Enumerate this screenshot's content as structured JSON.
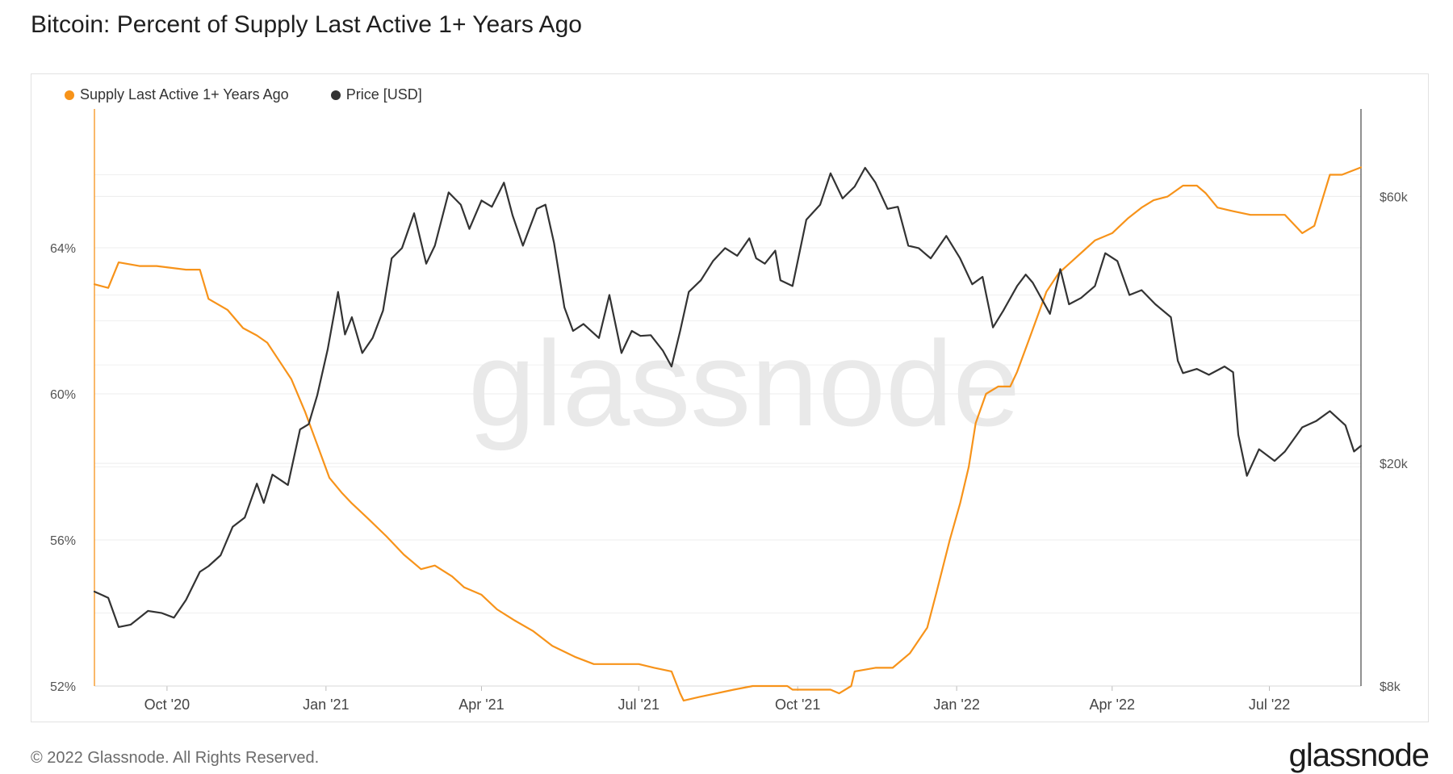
{
  "title": "Bitcoin: Percent of Supply Last Active 1+ Years Ago",
  "legend": [
    {
      "label": "Supply Last Active 1+ Years Ago",
      "color": "#f7931a"
    },
    {
      "label": "Price [USD]",
      "color": "#333333"
    }
  ],
  "watermark": "glassnode",
  "footer": {
    "copyright": "© 2022 Glassnode. All Rights Reserved.",
    "logo": "glassnode"
  },
  "chart_data": {
    "type": "line",
    "title": "Bitcoin: Percent of Supply Last Active 1+ Years Ago",
    "x_ticks": [
      "Oct '20",
      "Jan '21",
      "Apr '21",
      "Jul '21",
      "Oct '21",
      "Jan '22",
      "Apr '22",
      "Jul '22"
    ],
    "x_tick_dates": [
      "2020-10-01",
      "2021-01-01",
      "2021-04-01",
      "2021-07-01",
      "2021-10-01",
      "2022-01-01",
      "2022-04-01",
      "2022-07-01"
    ],
    "x_range": [
      "2020-08-20",
      "2022-08-23"
    ],
    "y_left": {
      "ticks": [
        "52%",
        "56%",
        "60%",
        "64%"
      ],
      "range": [
        52,
        67.8
      ],
      "unit": "%"
    },
    "y_right": {
      "ticks": [
        "$8k",
        "$20k",
        "$60k"
      ],
      "scale": "log",
      "range": [
        8000,
        86000
      ]
    },
    "grid": true,
    "legend_position": "top-left",
    "series": [
      {
        "name": "Supply Last Active 1+ Years Ago",
        "axis": "left",
        "color": "#f7931a",
        "x": [
          "2020-08-20",
          "2020-08-28",
          "2020-09-03",
          "2020-09-15",
          "2020-09-25",
          "2020-10-12",
          "2020-10-20",
          "2020-10-25",
          "2020-11-05",
          "2020-11-14",
          "2020-11-22",
          "2020-11-28",
          "2020-12-05",
          "2020-12-12",
          "2020-12-20",
          "2020-12-27",
          "2021-01-03",
          "2021-01-10",
          "2021-01-16",
          "2021-01-25",
          "2021-02-05",
          "2021-02-15",
          "2021-02-25",
          "2021-03-05",
          "2021-03-15",
          "2021-03-22",
          "2021-04-01",
          "2021-04-10",
          "2021-04-20",
          "2021-05-01",
          "2021-05-12",
          "2021-05-25",
          "2021-06-05",
          "2021-06-15",
          "2021-06-25",
          "2021-07-01",
          "2021-07-10",
          "2021-07-20",
          "2021-07-25",
          "2021-07-27",
          "2021-08-05",
          "2021-08-15",
          "2021-08-25",
          "2021-09-05",
          "2021-09-15",
          "2021-09-25",
          "2021-09-28",
          "2021-10-10",
          "2021-10-20",
          "2021-10-25",
          "2021-11-01",
          "2021-11-03",
          "2021-11-15",
          "2021-11-25",
          "2021-12-05",
          "2021-12-15",
          "2021-12-20",
          "2021-12-28",
          "2022-01-03",
          "2022-01-08",
          "2022-01-12",
          "2022-01-18",
          "2022-01-25",
          "2022-02-01",
          "2022-02-05",
          "2022-02-12",
          "2022-02-22",
          "2022-03-01",
          "2022-03-08",
          "2022-03-15",
          "2022-03-22",
          "2022-04-01",
          "2022-04-10",
          "2022-04-18",
          "2022-04-25",
          "2022-05-03",
          "2022-05-12",
          "2022-05-20",
          "2022-05-25",
          "2022-06-01",
          "2022-06-10",
          "2022-06-20",
          "2022-07-01",
          "2022-07-10",
          "2022-07-20",
          "2022-07-27",
          "2022-08-05",
          "2022-08-12",
          "2022-08-23"
        ],
        "values": [
          63.0,
          62.9,
          63.6,
          63.5,
          63.5,
          63.4,
          63.4,
          62.6,
          62.3,
          61.8,
          61.6,
          61.4,
          60.9,
          60.4,
          59.5,
          58.6,
          57.7,
          57.3,
          57.0,
          56.6,
          56.1,
          55.6,
          55.2,
          55.3,
          55.0,
          54.7,
          54.5,
          54.1,
          53.8,
          53.5,
          53.1,
          52.8,
          52.6,
          52.6,
          52.6,
          52.6,
          52.5,
          52.4,
          51.8,
          51.6,
          51.7,
          51.8,
          51.9,
          52.0,
          52.0,
          52.0,
          51.9,
          51.9,
          51.9,
          51.8,
          52.0,
          52.4,
          52.5,
          52.5,
          52.9,
          53.6,
          54.5,
          56.0,
          57.0,
          58.0,
          59.2,
          60.0,
          60.2,
          60.2,
          60.6,
          61.5,
          62.8,
          63.3,
          63.6,
          63.9,
          64.2,
          64.4,
          64.8,
          65.1,
          65.3,
          65.4,
          65.7,
          65.7,
          65.5,
          65.1,
          65.0,
          64.9,
          64.9,
          64.9,
          64.4,
          64.6,
          66.0,
          66.0,
          66.2
        ]
      },
      {
        "name": "Price [USD]",
        "axis": "right",
        "color": "#333333",
        "x": [
          "2020-08-20",
          "2020-08-28",
          "2020-09-03",
          "2020-09-10",
          "2020-09-20",
          "2020-09-28",
          "2020-10-05",
          "2020-10-12",
          "2020-10-20",
          "2020-10-25",
          "2020-11-01",
          "2020-11-08",
          "2020-11-15",
          "2020-11-22",
          "2020-11-26",
          "2020-12-01",
          "2020-12-10",
          "2020-12-17",
          "2020-12-22",
          "2020-12-27",
          "2021-01-02",
          "2021-01-08",
          "2021-01-12",
          "2021-01-16",
          "2021-01-22",
          "2021-01-28",
          "2021-02-03",
          "2021-02-08",
          "2021-02-14",
          "2021-02-21",
          "2021-02-28",
          "2021-03-05",
          "2021-03-13",
          "2021-03-20",
          "2021-03-25",
          "2021-04-01",
          "2021-04-07",
          "2021-04-14",
          "2021-04-19",
          "2021-04-25",
          "2021-05-03",
          "2021-05-08",
          "2021-05-13",
          "2021-05-19",
          "2021-05-24",
          "2021-05-30",
          "2021-06-08",
          "2021-06-14",
          "2021-06-21",
          "2021-06-27",
          "2021-07-02",
          "2021-07-08",
          "2021-07-15",
          "2021-07-20",
          "2021-07-25",
          "2021-07-30",
          "2021-08-06",
          "2021-08-13",
          "2021-08-20",
          "2021-08-27",
          "2021-09-03",
          "2021-09-07",
          "2021-09-12",
          "2021-09-18",
          "2021-09-21",
          "2021-09-28",
          "2021-10-06",
          "2021-10-14",
          "2021-10-20",
          "2021-10-27",
          "2021-11-03",
          "2021-11-09",
          "2021-11-15",
          "2021-11-22",
          "2021-11-28",
          "2021-12-04",
          "2021-12-10",
          "2021-12-17",
          "2021-12-26",
          "2022-01-03",
          "2022-01-10",
          "2022-01-16",
          "2022-01-22",
          "2022-01-28",
          "2022-02-05",
          "2022-02-10",
          "2022-02-14",
          "2022-02-24",
          "2022-03-02",
          "2022-03-07",
          "2022-03-14",
          "2022-03-22",
          "2022-03-28",
          "2022-04-04",
          "2022-04-11",
          "2022-04-18",
          "2022-04-26",
          "2022-05-05",
          "2022-05-09",
          "2022-05-12",
          "2022-05-20",
          "2022-05-27",
          "2022-06-05",
          "2022-06-10",
          "2022-06-13",
          "2022-06-18",
          "2022-06-25",
          "2022-07-04",
          "2022-07-10",
          "2022-07-20",
          "2022-07-28",
          "2022-08-05",
          "2022-08-14",
          "2022-08-19",
          "2022-08-23"
        ],
        "values": [
          11800,
          11500,
          10200,
          10300,
          10900,
          10800,
          10600,
          11400,
          12800,
          13100,
          13700,
          15400,
          16000,
          18400,
          17000,
          19100,
          18300,
          23000,
          23500,
          26500,
          32000,
          40500,
          34000,
          36500,
          31500,
          33500,
          37500,
          46500,
          48500,
          56000,
          45500,
          49000,
          61000,
          58000,
          52500,
          59000,
          57500,
          63500,
          55500,
          49000,
          57000,
          58000,
          49500,
          38000,
          34500,
          35500,
          33500,
          40000,
          31500,
          34500,
          33800,
          33900,
          31800,
          29800,
          34500,
          40500,
          42500,
          46000,
          48500,
          47000,
          50500,
          46500,
          45500,
          48000,
          42500,
          41500,
          54500,
          58000,
          66000,
          59500,
          62500,
          67500,
          63500,
          57000,
          57500,
          49000,
          48500,
          46500,
          51000,
          46500,
          41800,
          43100,
          35000,
          37500,
          41500,
          43500,
          42100,
          37000,
          44500,
          38500,
          39500,
          41500,
          47500,
          46000,
          40000,
          40800,
          38500,
          36500,
          30500,
          29000,
          29500,
          28800,
          29800,
          29100,
          22500,
          19000,
          21200,
          20200,
          21000,
          23200,
          23800,
          24800,
          23400,
          21000,
          21500
        ]
      }
    ]
  }
}
